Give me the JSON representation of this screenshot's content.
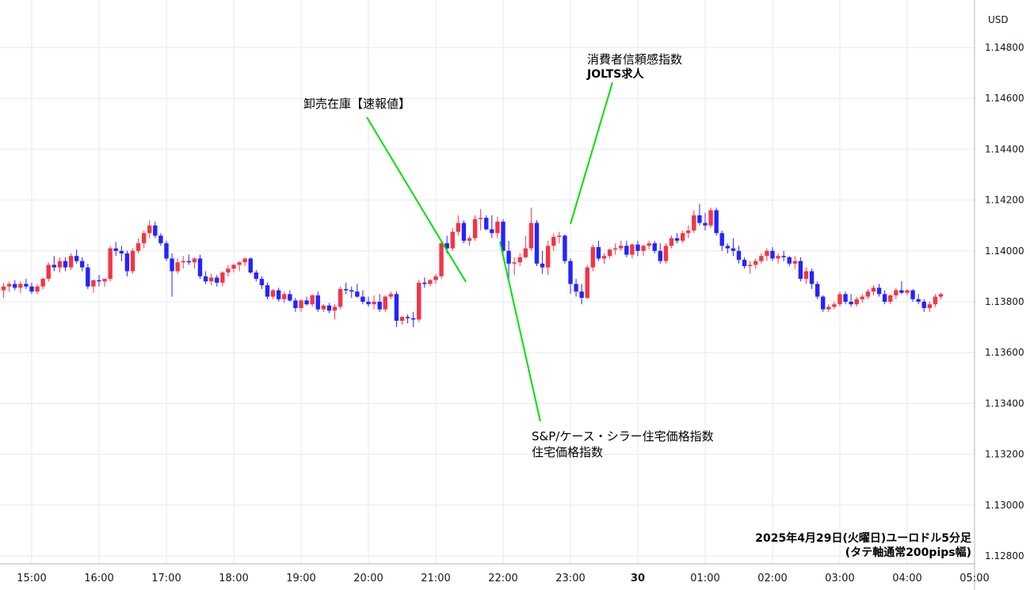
{
  "chart_data": {
    "type": "candlestick",
    "currency": "USD",
    "y_ticks": [
      "1.14800",
      "1.14600",
      "1.14400",
      "1.14200",
      "1.14000",
      "1.13800",
      "1.13600",
      "1.13400",
      "1.13200",
      "1.13000",
      "1.12800"
    ],
    "ylim": [
      1.1275,
      1.1497
    ],
    "x_ticks": [
      {
        "label": "15:00",
        "bold": false
      },
      {
        "label": "16:00",
        "bold": false
      },
      {
        "label": "17:00",
        "bold": false
      },
      {
        "label": "18:00",
        "bold": false
      },
      {
        "label": "19:00",
        "bold": false
      },
      {
        "label": "20:00",
        "bold": false
      },
      {
        "label": "21:00",
        "bold": false
      },
      {
        "label": "22:00",
        "bold": false
      },
      {
        "label": "23:00",
        "bold": false
      },
      {
        "label": "30",
        "bold": true
      },
      {
        "label": "01:00",
        "bold": false
      },
      {
        "label": "02:00",
        "bold": false
      },
      {
        "label": "03:00",
        "bold": false
      },
      {
        "label": "04:00",
        "bold": false
      },
      {
        "label": "05:00",
        "bold": false
      }
    ],
    "up_color": "#f23645",
    "down_color": "#2424ff",
    "candle_start_time": "14:35",
    "candle_interval": "5 min",
    "candles": [
      [
        1.13845,
        1.13875,
        1.13815,
        1.1386
      ],
      [
        1.1386,
        1.1388,
        1.1384,
        1.1387
      ],
      [
        1.1387,
        1.13885,
        1.13845,
        1.13855
      ],
      [
        1.13855,
        1.1388,
        1.13835,
        1.1387
      ],
      [
        1.1387,
        1.1389,
        1.1385,
        1.1386
      ],
      [
        1.1386,
        1.13875,
        1.1383,
        1.1384
      ],
      [
        1.1384,
        1.1387,
        1.1383,
        1.1386
      ],
      [
        1.1386,
        1.13895,
        1.1385,
        1.1389
      ],
      [
        1.1389,
        1.13955,
        1.1388,
        1.13945
      ],
      [
        1.13945,
        1.1398,
        1.1392,
        1.13935
      ],
      [
        1.13935,
        1.13975,
        1.13915,
        1.1396
      ],
      [
        1.1396,
        1.13975,
        1.1392,
        1.13935
      ],
      [
        1.13935,
        1.1399,
        1.13925,
        1.1398
      ],
      [
        1.1398,
        1.14005,
        1.1395,
        1.1396
      ],
      [
        1.1396,
        1.13975,
        1.1392,
        1.13935
      ],
      [
        1.13935,
        1.1395,
        1.1385,
        1.1386
      ],
      [
        1.1386,
        1.1388,
        1.13835,
        1.13885
      ],
      [
        1.13885,
        1.13905,
        1.1386,
        1.1388
      ],
      [
        1.1388,
        1.1389,
        1.1386,
        1.1389
      ],
      [
        1.1389,
        1.1402,
        1.1388,
        1.1401
      ],
      [
        1.1401,
        1.14035,
        1.1398,
        1.14
      ],
      [
        1.14,
        1.1402,
        1.1396,
        1.1399
      ],
      [
        1.1399,
        1.14,
        1.139,
        1.1392
      ],
      [
        1.1392,
        1.1401,
        1.1391,
        1.14
      ],
      [
        1.14,
        1.1405,
        1.1399,
        1.1403
      ],
      [
        1.1403,
        1.1408,
        1.1401,
        1.1407
      ],
      [
        1.1407,
        1.1412,
        1.1405,
        1.141
      ],
      [
        1.141,
        1.14115,
        1.1405,
        1.1406
      ],
      [
        1.1406,
        1.1407,
        1.1402,
        1.1403
      ],
      [
        1.1403,
        1.1404,
        1.1396,
        1.1397
      ],
      [
        1.1397,
        1.1399,
        1.1382,
        1.1392
      ],
      [
        1.1392,
        1.1397,
        1.1391,
        1.13955
      ],
      [
        1.13955,
        1.1398,
        1.1393,
        1.1396
      ],
      [
        1.1396,
        1.13985,
        1.13945,
        1.13955
      ],
      [
        1.13955,
        1.13975,
        1.1393,
        1.1397
      ],
      [
        1.1397,
        1.13985,
        1.1389,
        1.139
      ],
      [
        1.139,
        1.1392,
        1.1387,
        1.1388
      ],
      [
        1.1388,
        1.1391,
        1.13865,
        1.13895
      ],
      [
        1.13895,
        1.13905,
        1.1386,
        1.13875
      ],
      [
        1.13875,
        1.1392,
        1.1386,
        1.13915
      ],
      [
        1.13915,
        1.13945,
        1.139,
        1.1393
      ],
      [
        1.1393,
        1.1395,
        1.13915,
        1.13945
      ],
      [
        1.13945,
        1.1396,
        1.1392,
        1.13955
      ],
      [
        1.13955,
        1.13975,
        1.1394,
        1.1397
      ],
      [
        1.1397,
        1.13975,
        1.1391,
        1.13915
      ],
      [
        1.13915,
        1.13925,
        1.1388,
        1.1389
      ],
      [
        1.1389,
        1.139,
        1.1385,
        1.13865
      ],
      [
        1.13865,
        1.13875,
        1.1381,
        1.1382
      ],
      [
        1.1382,
        1.1385,
        1.1381,
        1.13845
      ],
      [
        1.13845,
        1.13855,
        1.138,
        1.1381
      ],
      [
        1.1381,
        1.1384,
        1.13795,
        1.1383
      ],
      [
        1.1383,
        1.13845,
        1.138,
        1.13805
      ],
      [
        1.13805,
        1.13815,
        1.1376,
        1.13775
      ],
      [
        1.13775,
        1.1381,
        1.1376,
        1.13805
      ],
      [
        1.13805,
        1.1382,
        1.13785,
        1.1379
      ],
      [
        1.1379,
        1.1383,
        1.1378,
        1.13825
      ],
      [
        1.13825,
        1.1384,
        1.1376,
        1.1377
      ],
      [
        1.1377,
        1.1379,
        1.1376,
        1.13785
      ],
      [
        1.13785,
        1.13795,
        1.13755,
        1.13765
      ],
      [
        1.13765,
        1.1379,
        1.1373,
        1.1378
      ],
      [
        1.1378,
        1.1386,
        1.1377,
        1.1385
      ],
      [
        1.1385,
        1.13875,
        1.1383,
        1.13845
      ],
      [
        1.13845,
        1.1386,
        1.13815,
        1.1384
      ],
      [
        1.1384,
        1.1387,
        1.13815,
        1.1382
      ],
      [
        1.1382,
        1.13845,
        1.1379,
        1.138
      ],
      [
        1.138,
        1.1382,
        1.1378,
        1.1379
      ],
      [
        1.1379,
        1.13825,
        1.1377,
        1.138
      ],
      [
        1.138,
        1.1383,
        1.1376,
        1.1377
      ],
      [
        1.1377,
        1.13825,
        1.1376,
        1.1382
      ],
      [
        1.1382,
        1.1384,
        1.1381,
        1.1383
      ],
      [
        1.1383,
        1.1384,
        1.137,
        1.13725
      ],
      [
        1.13725,
        1.13745,
        1.1371,
        1.1374
      ],
      [
        1.1374,
        1.1375,
        1.13715,
        1.13735
      ],
      [
        1.13735,
        1.1376,
        1.137,
        1.1373
      ],
      [
        1.1373,
        1.13885,
        1.1372,
        1.13875
      ],
      [
        1.13875,
        1.13895,
        1.13855,
        1.1387
      ],
      [
        1.1387,
        1.1389,
        1.1386,
        1.13885
      ],
      [
        1.13885,
        1.1391,
        1.1387,
        1.139
      ],
      [
        1.139,
        1.1404,
        1.1389,
        1.1403
      ],
      [
        1.1403,
        1.1406,
        1.1399,
        1.1401
      ],
      [
        1.1401,
        1.1409,
        1.14,
        1.14075
      ],
      [
        1.14075,
        1.1414,
        1.1406,
        1.1411
      ],
      [
        1.1411,
        1.1412,
        1.1403,
        1.1404
      ],
      [
        1.1404,
        1.1406,
        1.1402,
        1.1405
      ],
      [
        1.1405,
        1.1414,
        1.1404,
        1.14125
      ],
      [
        1.14125,
        1.14165,
        1.1408,
        1.1413
      ],
      [
        1.1413,
        1.1414,
        1.1408,
        1.14085
      ],
      [
        1.14085,
        1.1414,
        1.1405,
        1.1407
      ],
      [
        1.1407,
        1.14135,
        1.1405,
        1.14115
      ],
      [
        1.14115,
        1.14125,
        1.1398,
        1.14
      ],
      [
        1.14,
        1.1404,
        1.1388,
        1.1395
      ],
      [
        1.1395,
        1.13975,
        1.13905,
        1.13955
      ],
      [
        1.13955,
        1.1399,
        1.1394,
        1.13975
      ],
      [
        1.13975,
        1.1406,
        1.1397,
        1.1401
      ],
      [
        1.1401,
        1.1417,
        1.14,
        1.1411
      ],
      [
        1.1411,
        1.1412,
        1.1394,
        1.1395
      ],
      [
        1.1395,
        1.14,
        1.1391,
        1.13935
      ],
      [
        1.13935,
        1.1404,
        1.13905,
        1.1402
      ],
      [
        1.1402,
        1.1407,
        1.14,
        1.14055
      ],
      [
        1.14055,
        1.14075,
        1.1403,
        1.1406
      ],
      [
        1.1406,
        1.14065,
        1.1395,
        1.1396
      ],
      [
        1.1396,
        1.1397,
        1.1383,
        1.1387
      ],
      [
        1.1387,
        1.1389,
        1.1382,
        1.1384
      ],
      [
        1.1384,
        1.1387,
        1.1379,
        1.13815
      ],
      [
        1.13815,
        1.13945,
        1.1381,
        1.13935
      ],
      [
        1.13935,
        1.14025,
        1.1392,
        1.14015
      ],
      [
        1.14015,
        1.1404,
        1.1396,
        1.1397
      ],
      [
        1.1397,
        1.1399,
        1.1395,
        1.1398
      ],
      [
        1.1398,
        1.1401,
        1.1397,
        1.14005
      ],
      [
        1.14005,
        1.1403,
        1.13985,
        1.1401
      ],
      [
        1.1401,
        1.1404,
        1.14,
        1.1402
      ],
      [
        1.1402,
        1.1404,
        1.13975,
        1.13985
      ],
      [
        1.13985,
        1.1403,
        1.1397,
        1.14025
      ],
      [
        1.14025,
        1.1404,
        1.1398,
        1.14
      ],
      [
        1.14,
        1.14025,
        1.1398,
        1.1402
      ],
      [
        1.1402,
        1.1404,
        1.14005,
        1.1403
      ],
      [
        1.1403,
        1.1404,
        1.1399,
        1.14
      ],
      [
        1.14,
        1.1403,
        1.1395,
        1.1396
      ],
      [
        1.1396,
        1.1403,
        1.1395,
        1.1402
      ],
      [
        1.1402,
        1.1406,
        1.1401,
        1.1405
      ],
      [
        1.1405,
        1.1407,
        1.1403,
        1.1404
      ],
      [
        1.1404,
        1.1408,
        1.1403,
        1.1407
      ],
      [
        1.1407,
        1.141,
        1.1405,
        1.1408
      ],
      [
        1.1408,
        1.1416,
        1.1407,
        1.1414
      ],
      [
        1.1414,
        1.14185,
        1.141,
        1.1411
      ],
      [
        1.1411,
        1.1415,
        1.1408,
        1.141
      ],
      [
        1.141,
        1.1417,
        1.1409,
        1.1416
      ],
      [
        1.1416,
        1.1417,
        1.1406,
        1.1407
      ],
      [
        1.1407,
        1.1408,
        1.14,
        1.1402
      ],
      [
        1.1402,
        1.1403,
        1.1399,
        1.1401
      ],
      [
        1.1401,
        1.1405,
        1.1398,
        1.14
      ],
      [
        1.14,
        1.1402,
        1.1395,
        1.13965
      ],
      [
        1.13965,
        1.13975,
        1.1393,
        1.1394
      ],
      [
        1.1394,
        1.1396,
        1.1391,
        1.13945
      ],
      [
        1.13945,
        1.1397,
        1.1393,
        1.1396
      ],
      [
        1.1396,
        1.1399,
        1.1395,
        1.1398
      ],
      [
        1.1398,
        1.1401,
        1.1396,
        1.14
      ],
      [
        1.14,
        1.14015,
        1.1396,
        1.1397
      ],
      [
        1.1397,
        1.1399,
        1.1395,
        1.1398
      ],
      [
        1.1398,
        1.14,
        1.1396,
        1.13975
      ],
      [
        1.13975,
        1.1398,
        1.1394,
        1.1395
      ],
      [
        1.1395,
        1.1398,
        1.1393,
        1.1396
      ],
      [
        1.1396,
        1.13975,
        1.1388,
        1.1389
      ],
      [
        1.1389,
        1.13935,
        1.1387,
        1.1392
      ],
      [
        1.1392,
        1.1393,
        1.1385,
        1.1387
      ],
      [
        1.1387,
        1.1388,
        1.1381,
        1.1382
      ],
      [
        1.1382,
        1.13825,
        1.1376,
        1.1377
      ],
      [
        1.1377,
        1.1379,
        1.1376,
        1.1378
      ],
      [
        1.1378,
        1.138,
        1.1377,
        1.1379
      ],
      [
        1.1379,
        1.1384,
        1.1378,
        1.1383
      ],
      [
        1.1383,
        1.1384,
        1.1379,
        1.138
      ],
      [
        1.138,
        1.1383,
        1.1378,
        1.1379
      ],
      [
        1.1379,
        1.1382,
        1.1378,
        1.1381
      ],
      [
        1.1381,
        1.1383,
        1.13795,
        1.1382
      ],
      [
        1.1382,
        1.1385,
        1.1381,
        1.1384
      ],
      [
        1.1384,
        1.13865,
        1.13825,
        1.13855
      ],
      [
        1.13855,
        1.1387,
        1.1382,
        1.1383
      ],
      [
        1.1383,
        1.13845,
        1.1379,
        1.138
      ],
      [
        1.138,
        1.1383,
        1.1379,
        1.13825
      ],
      [
        1.13825,
        1.13855,
        1.1381,
        1.13845
      ],
      [
        1.13845,
        1.1388,
        1.1383,
        1.13835
      ],
      [
        1.13835,
        1.1385,
        1.13825,
        1.13845
      ],
      [
        1.13845,
        1.1385,
        1.138,
        1.1381
      ],
      [
        1.1381,
        1.1383,
        1.1379,
        1.138
      ],
      [
        1.138,
        1.1381,
        1.1376,
        1.13775
      ],
      [
        1.13775,
        1.138,
        1.1376,
        1.1379
      ],
      [
        1.1379,
        1.1383,
        1.1378,
        1.1382
      ],
      [
        1.1382,
        1.13835,
        1.1381,
        1.1383
      ]
    ],
    "annotations": [
      {
        "lines": [
          "卸売在庫【速報値】"
        ]
      },
      {
        "lines": [
          "消費者信頼感指数",
          "JOLTS求人"
        ]
      },
      {
        "lines": [
          "S&P/ケース・シラー住宅価格指数",
          "住宅価格指数"
        ]
      }
    ],
    "caption": [
      "2025年4月29日(火曜日)ユーロドル5分足",
      "(タテ軸通常200pips幅)"
    ]
  }
}
